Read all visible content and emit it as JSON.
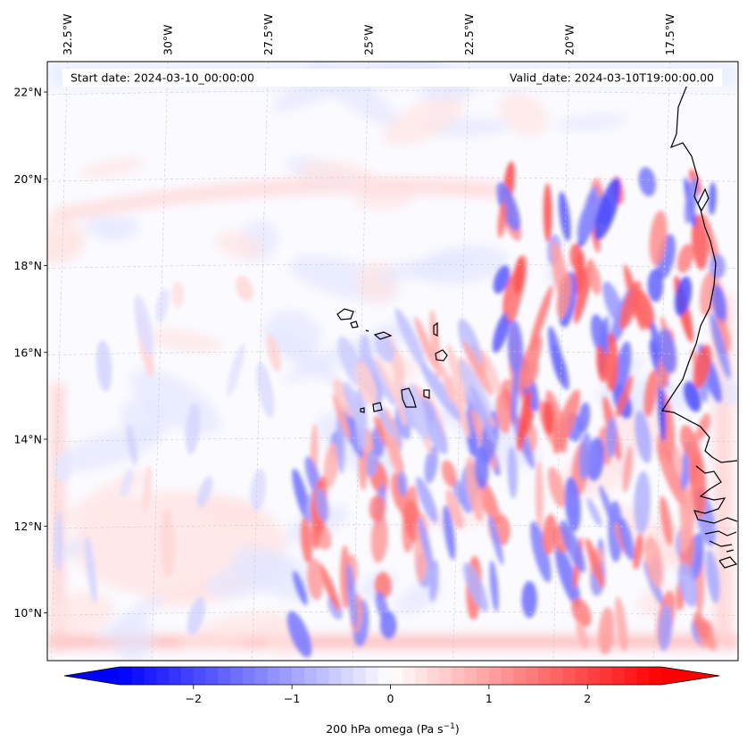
{
  "header": {
    "start_date": "Start date: 2024-03-10_00:00:00",
    "valid_date": "Valid_date: 2024-03-10T19:00:00.00"
  },
  "map": {
    "lon_labels": [
      "32.5°W",
      "30°W",
      "27.5°W",
      "25°W",
      "22.5°W",
      "20°W",
      "17.5°W"
    ],
    "lat_labels": [
      "22°N",
      "20°N",
      "18°N",
      "16°N",
      "14°N",
      "12°N",
      "10°N"
    ],
    "lon_values": [
      -32.5,
      -30,
      -27.5,
      -25,
      -22.5,
      -20,
      -17.5
    ],
    "lat_values": [
      22,
      20,
      18,
      16,
      14,
      12,
      10
    ],
    "extent": {
      "lon_min": -33.0,
      "lon_max": -15.8,
      "lat_min": 8.9,
      "lat_max": 22.7
    },
    "gridlines": true,
    "coastline_color": "#000000"
  },
  "colorbar": {
    "label_main": "200 hPa omega (Pa s",
    "label_sup": "−1",
    "label_close": ")",
    "tick_labels": [
      "−2",
      "−1",
      "0",
      "1",
      "2"
    ],
    "tick_values": [
      -2,
      -1,
      0,
      1,
      2
    ],
    "range": [
      -2.75,
      2.75
    ],
    "extend": "both",
    "min_color": "#0000ff",
    "mid_color": "#ffffff",
    "max_color": "#ff0000"
  }
}
